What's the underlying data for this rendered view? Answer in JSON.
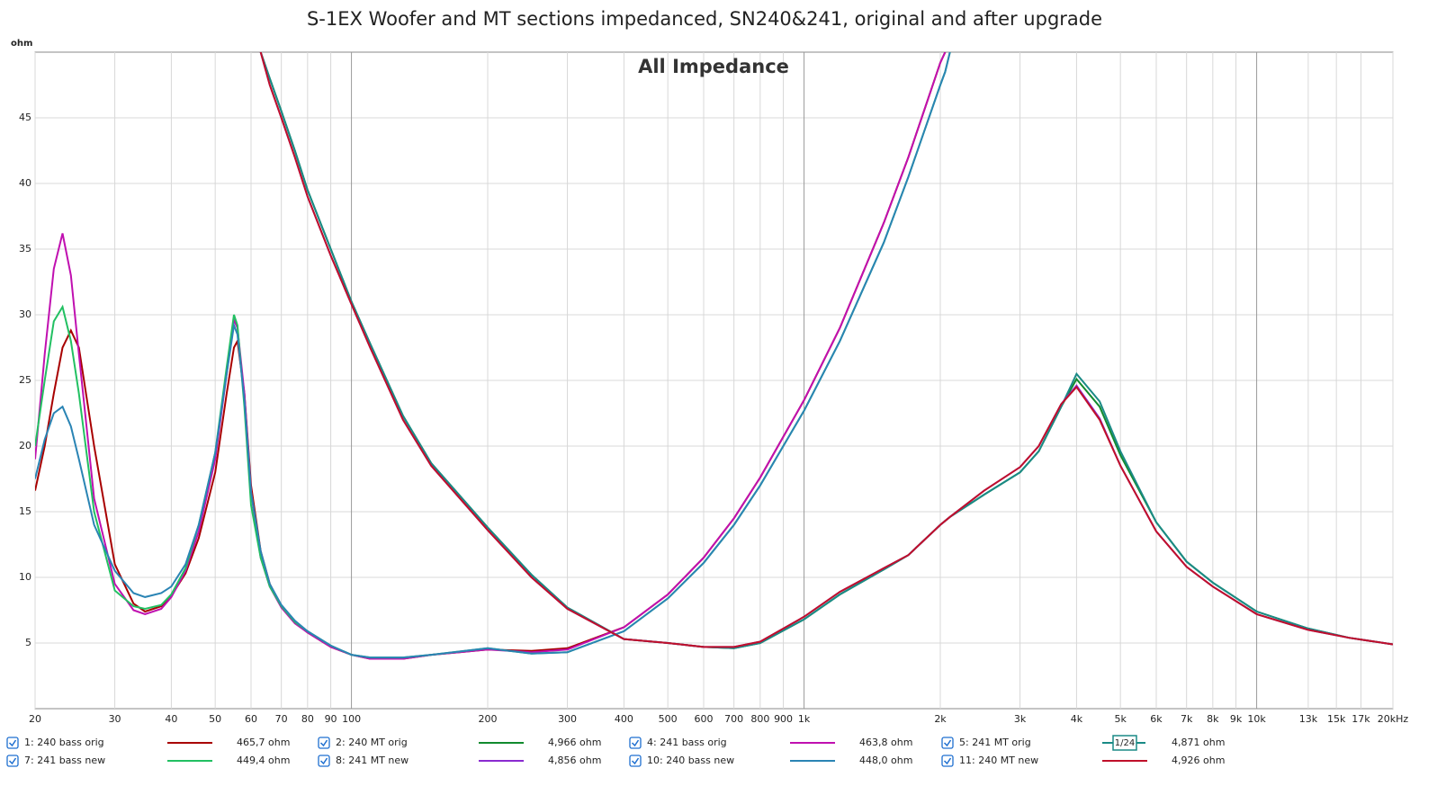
{
  "chart_data": {
    "type": "line",
    "title": "S-1EX Woofer and MT sections impedanced, SN240&241, original and after upgrade",
    "subtitle": "All Impedance",
    "y_label": "ohm",
    "log_x": true,
    "grid": true,
    "xlim": [
      20,
      20000
    ],
    "ylim": [
      0,
      50
    ],
    "yticks": [
      5,
      10,
      15,
      20,
      25,
      30,
      35,
      40,
      45
    ],
    "xticks": [
      20,
      30,
      40,
      50,
      60,
      70,
      80,
      90,
      100,
      200,
      300,
      400,
      500,
      600,
      700,
      800,
      900,
      {
        "value": 1000,
        "label": "1k"
      },
      {
        "value": 2000,
        "label": "2k"
      },
      {
        "value": 3000,
        "label": "3k"
      },
      {
        "value": 4000,
        "label": "4k"
      },
      {
        "value": 5000,
        "label": "5k"
      },
      {
        "value": 6000,
        "label": "6k"
      },
      {
        "value": 7000,
        "label": "7k"
      },
      {
        "value": 8000,
        "label": "8k"
      },
      {
        "value": 9000,
        "label": "9k"
      },
      {
        "value": 10000,
        "label": "10k"
      },
      {
        "value": 13000,
        "label": "13k"
      },
      {
        "value": 15000,
        "label": "15k"
      },
      {
        "value": 17000,
        "label": "17k"
      },
      {
        "value": 20000,
        "label": "20kHz"
      }
    ],
    "x": [
      20,
      21,
      22,
      23,
      24,
      25,
      27,
      30,
      33,
      35,
      38,
      40,
      43,
      46,
      50,
      53,
      55,
      56,
      58,
      60,
      63,
      66,
      70,
      75,
      80,
      90,
      100,
      110,
      130,
      150,
      200,
      250,
      300,
      400,
      500,
      600,
      700,
      800,
      1000,
      1200,
      1500,
      1700,
      2000,
      2050,
      2100,
      2500,
      3000,
      3300,
      3700,
      4000,
      4500,
      5000,
      6000,
      7000,
      8000,
      10000,
      13000,
      16000,
      20000
    ],
    "series": [
      {
        "name": "1: 240 bass orig",
        "color": "#a80000",
        "readout": "465,7 ohm",
        "values": [
          16.6,
          20,
          24,
          27.5,
          28.8,
          27.5,
          20,
          11,
          8,
          7.4,
          7.8,
          8.6,
          10.3,
          13,
          18,
          24,
          27.5,
          28,
          24,
          17,
          12,
          9.5,
          7.8,
          6.6,
          5.8,
          4.7,
          4.1,
          3.8,
          3.8,
          4.1,
          4.5,
          4.4,
          4.6,
          6.2,
          8.7,
          11.5,
          14.5,
          17.6,
          23.5,
          29,
          37,
          42,
          49.2,
          50,
          null,
          null,
          null,
          null,
          null,
          null,
          null,
          null,
          null,
          null,
          null,
          null,
          null,
          null,
          null
        ]
      },
      {
        "name": "2: 240 MT orig",
        "color": "#118a2e",
        "readout": "4,966 ohm",
        "values": [
          null,
          null,
          null,
          null,
          null,
          null,
          null,
          null,
          null,
          null,
          null,
          null,
          null,
          null,
          null,
          null,
          null,
          null,
          null,
          null,
          50,
          48,
          45.5,
          42.5,
          39.5,
          35,
          31,
          27.8,
          22.3,
          18.7,
          13.8,
          10.2,
          7.7,
          5.3,
          5.0,
          4.7,
          4.6,
          5.0,
          6.8,
          8.7,
          10.6,
          11.7,
          14,
          14.3,
          14.6,
          16.3,
          18.0,
          19.6,
          23,
          25.1,
          23,
          19.3,
          14.2,
          11.2,
          9.6,
          7.4,
          6.1,
          5.4,
          4.9
        ]
      },
      {
        "name": "4: 241 bass orig",
        "color": "#c010b0",
        "readout": "463,8 ohm",
        "values": [
          19,
          27,
          33.5,
          36.2,
          33,
          27,
          16,
          9.5,
          7.5,
          7.2,
          7.6,
          8.5,
          10.5,
          13.5,
          19,
          25.5,
          29.6,
          29,
          24,
          16.5,
          11.5,
          9.3,
          7.7,
          6.5,
          5.8,
          4.7,
          4.1,
          3.8,
          3.8,
          4.1,
          4.5,
          4.3,
          4.5,
          6.2,
          8.7,
          11.5,
          14.5,
          17.6,
          23.5,
          29,
          37,
          42,
          49.2,
          50,
          null,
          null,
          null,
          null,
          null,
          null,
          null,
          null,
          null,
          null,
          null,
          null,
          null,
          null,
          null
        ]
      },
      {
        "name": "5: 241 MT orig",
        "color": "#1a8a86",
        "readout": "4,871 ohm",
        "smoothing": "1/24",
        "values": [
          null,
          null,
          null,
          null,
          null,
          null,
          null,
          null,
          null,
          null,
          null,
          null,
          null,
          null,
          null,
          null,
          null,
          null,
          null,
          null,
          50,
          48,
          45.5,
          42.5,
          39.5,
          35,
          31,
          27.8,
          22.3,
          18.7,
          13.8,
          10.2,
          7.7,
          5.3,
          5.0,
          4.7,
          4.6,
          5.0,
          6.8,
          8.7,
          10.6,
          11.7,
          14,
          14.3,
          14.6,
          16.3,
          18.0,
          19.6,
          23,
          25.5,
          23.4,
          19.6,
          14.2,
          11.2,
          9.6,
          7.4,
          6.1,
          5.4,
          4.9
        ]
      },
      {
        "name": "7: 241 bass new",
        "color": "#22c062",
        "readout": "449,4 ohm",
        "values": [
          20,
          25,
          29.5,
          30.6,
          28,
          24,
          15,
          9,
          7.8,
          7.6,
          7.9,
          8.7,
          10.7,
          14,
          19.5,
          26,
          30,
          29.2,
          23,
          15.5,
          11.5,
          9.3,
          7.8,
          6.6,
          5.9,
          4.8,
          4.1,
          3.9,
          3.9,
          4.1,
          4.6,
          4.2,
          4.3,
          5.9,
          8.4,
          11.1,
          14,
          17,
          22.7,
          28,
          35.5,
          40.5,
          47.5,
          48.5,
          50,
          null,
          null,
          null,
          null,
          null,
          null,
          null,
          null,
          null,
          null,
          null,
          null,
          null,
          null
        ]
      },
      {
        "name": "8: 241 MT new",
        "color": "#8a2ad0",
        "readout": "4,856 ohm",
        "values": [
          null,
          null,
          null,
          null,
          null,
          null,
          null,
          null,
          null,
          null,
          null,
          null,
          null,
          null,
          null,
          null,
          null,
          null,
          null,
          null,
          50,
          47.5,
          45,
          42,
          39,
          34.5,
          30.8,
          27.5,
          22,
          18.5,
          13.6,
          10,
          7.6,
          5.3,
          5.0,
          4.7,
          4.7,
          5.1,
          7,
          8.9,
          10.7,
          11.7,
          14,
          14.3,
          14.6,
          16.6,
          18.4,
          20,
          23.2,
          24.6,
          22.1,
          18.5,
          13.5,
          10.8,
          9.3,
          7.2,
          6,
          5.4,
          4.9
        ]
      },
      {
        "name": "10: 240 bass new",
        "color": "#2a84b4",
        "readout": "448,0 ohm",
        "values": [
          17.5,
          20.5,
          22.5,
          23,
          21.5,
          19,
          14,
          10.5,
          8.8,
          8.5,
          8.8,
          9.3,
          11,
          14,
          19.5,
          25.5,
          29.2,
          28.5,
          23.5,
          16.5,
          12,
          9.5,
          7.9,
          6.7,
          5.9,
          4.8,
          4.1,
          3.9,
          3.9,
          4.1,
          4.6,
          4.2,
          4.3,
          5.9,
          8.4,
          11.1,
          14,
          17,
          22.7,
          28,
          35.5,
          40.5,
          47.5,
          48.5,
          50,
          null,
          null,
          null,
          null,
          null,
          null,
          null,
          null,
          null,
          null,
          null,
          null,
          null,
          null
        ]
      },
      {
        "name": "11: 240 MT new",
        "color": "#c0102a",
        "readout": "4,926 ohm",
        "values": [
          null,
          null,
          null,
          null,
          null,
          null,
          null,
          null,
          null,
          null,
          null,
          null,
          null,
          null,
          null,
          null,
          null,
          null,
          null,
          null,
          50,
          47.5,
          45,
          42,
          39,
          34.5,
          30.8,
          27.5,
          22,
          18.5,
          13.6,
          10,
          7.6,
          5.3,
          5.0,
          4.7,
          4.7,
          5.1,
          7,
          8.9,
          10.7,
          11.7,
          14,
          14.3,
          14.6,
          16.6,
          18.4,
          20,
          23.2,
          24.5,
          22,
          18.5,
          13.5,
          10.8,
          9.3,
          7.2,
          6,
          5.4,
          4.9
        ]
      }
    ]
  }
}
